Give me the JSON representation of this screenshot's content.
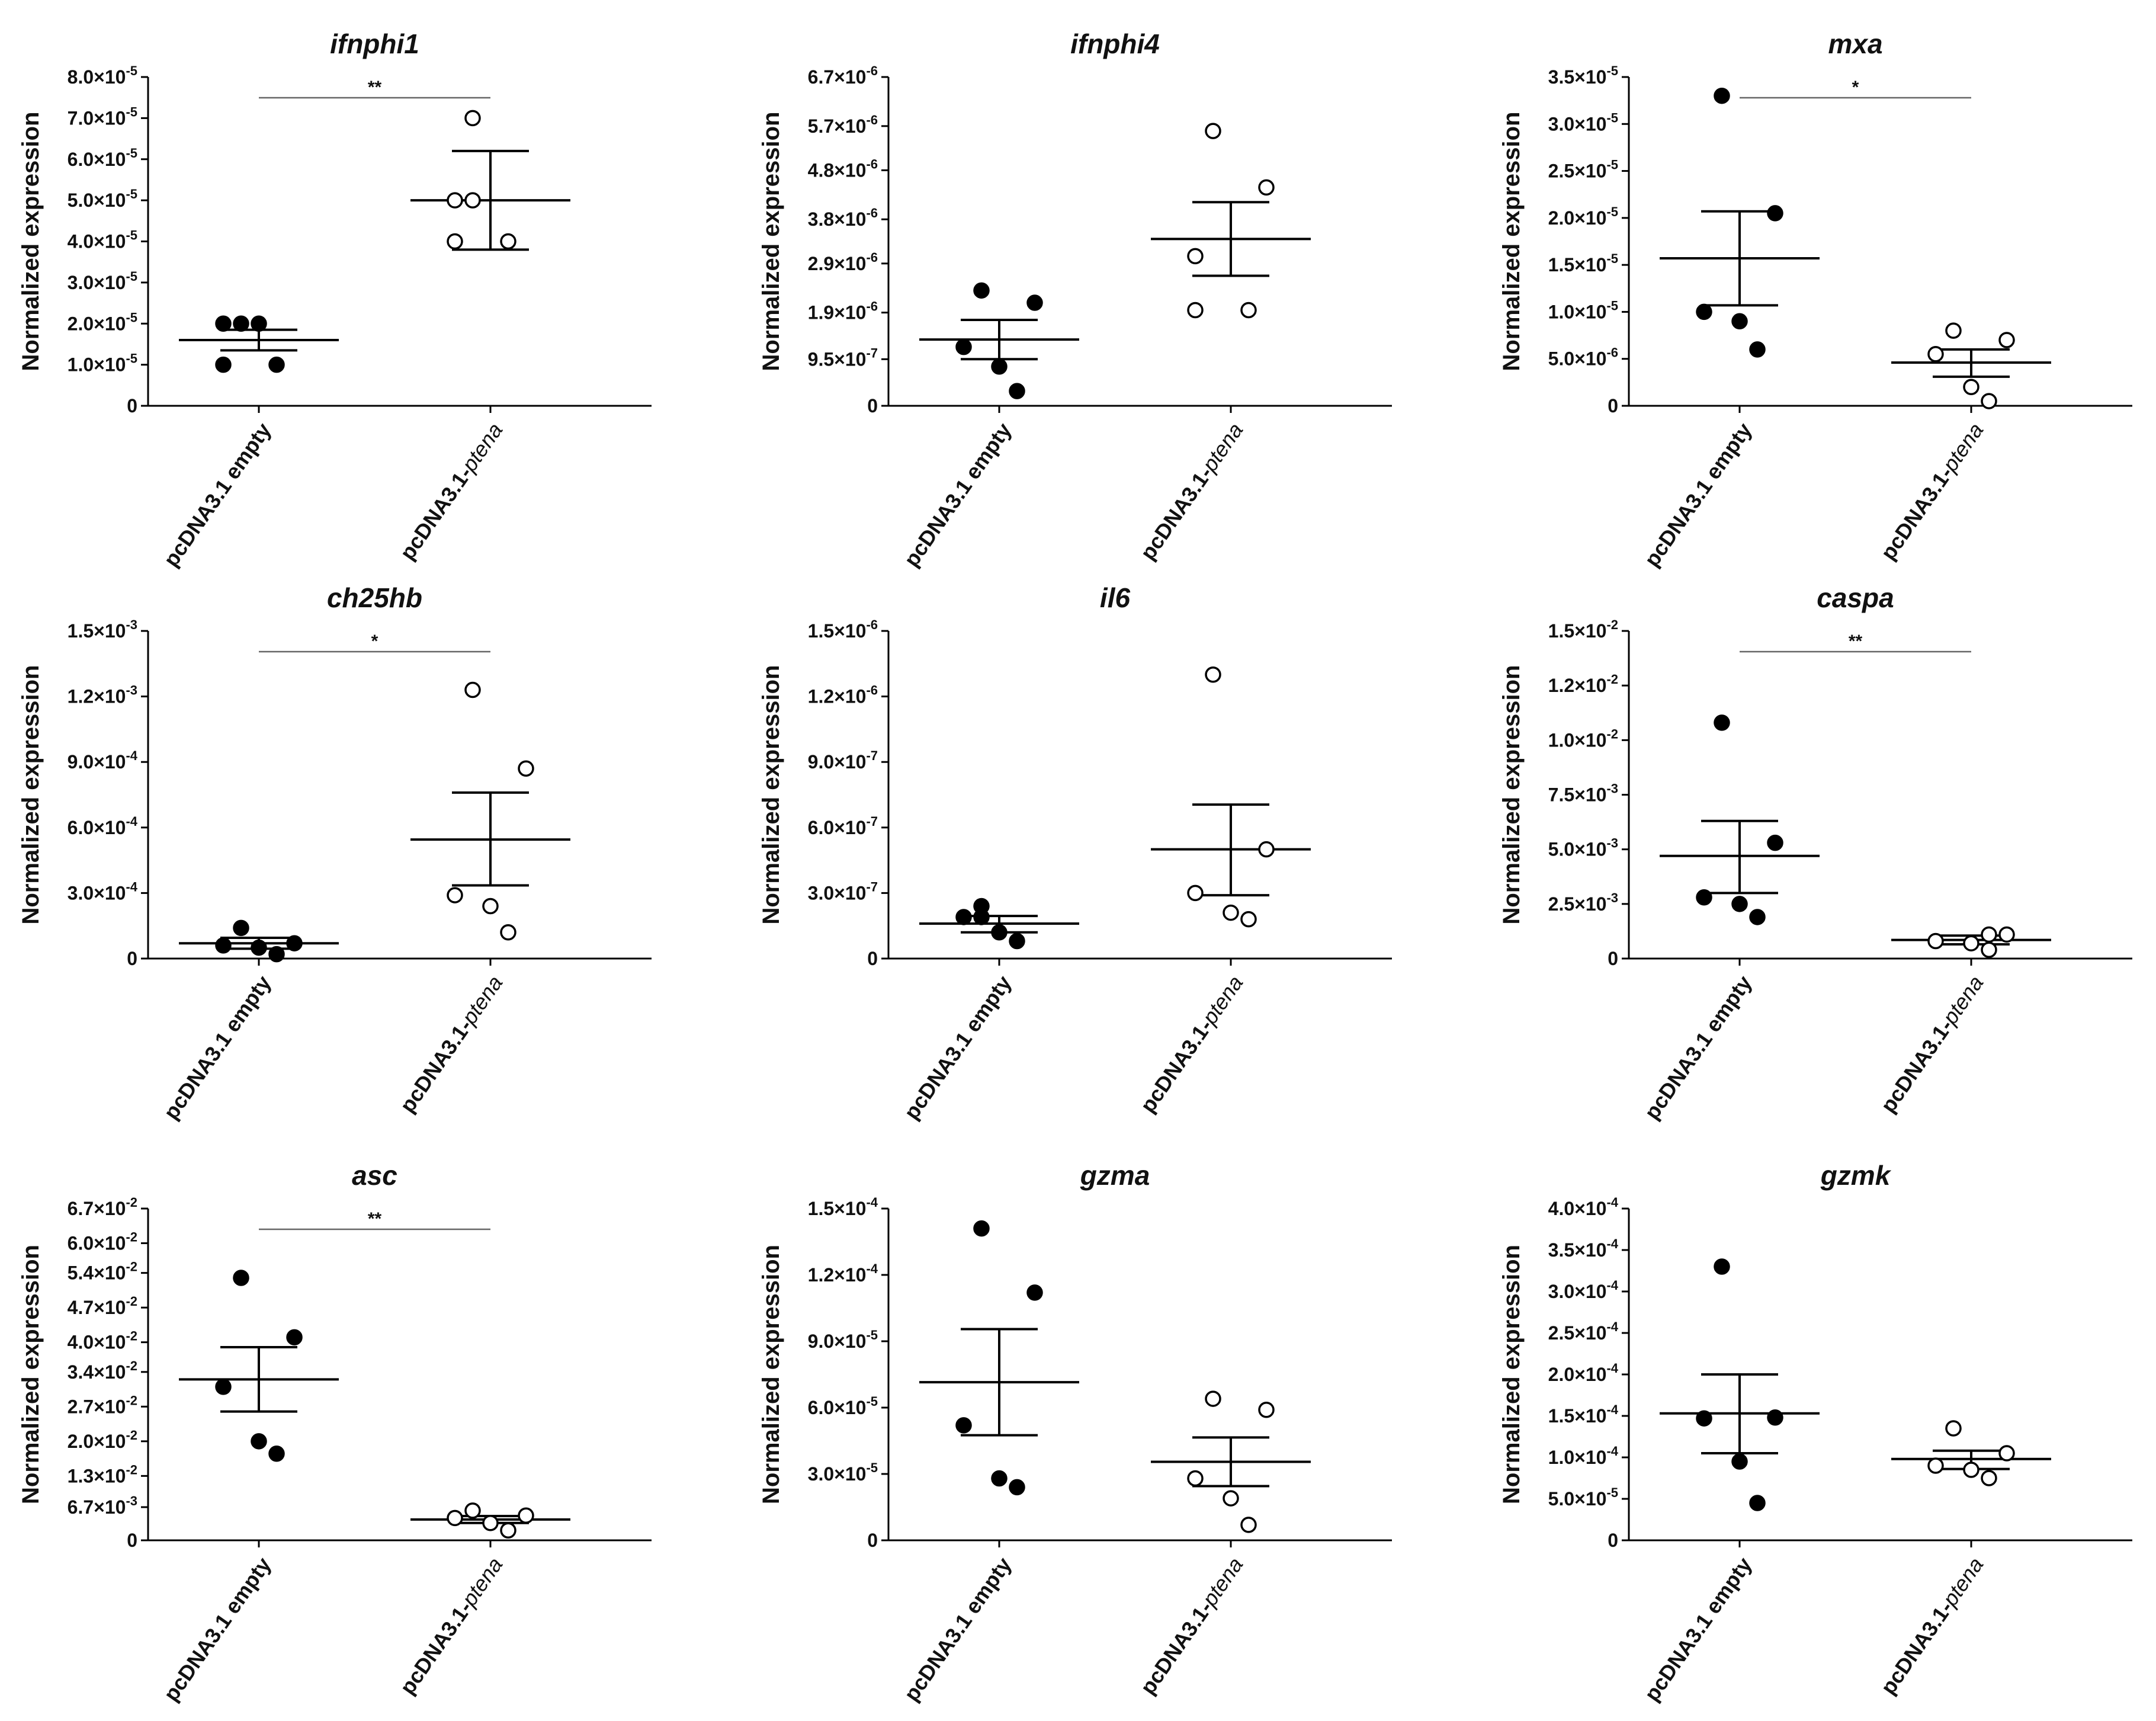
{
  "figure": {
    "background": "#ffffff",
    "filled_color": "#000000",
    "open_color": "#ffffff",
    "line_color": "#000000",
    "bar_color": "#666666"
  },
  "chart_data": [
    {
      "type": "scatter",
      "title": "ifnphi1",
      "ylabel": "Normalized expression",
      "categories": [
        "pcDNA3.1 empty",
        "pcDNA3.1-ptena"
      ],
      "ylim": [
        0,
        8e-05
      ],
      "yticks": [
        0,
        1e-05,
        2e-05,
        3e-05,
        4e-05,
        5e-05,
        6e-05,
        7e-05,
        8e-05
      ],
      "yticklabels": [
        "0",
        "1.0×10⁻⁵",
        "2.0×10⁻⁵",
        "3.0×10⁻⁵",
        "4.0×10⁻⁵",
        "5.0×10⁻⁵",
        "6.0×10⁻⁵",
        "7.0×10⁻⁵",
        "8.0×10⁻⁵"
      ],
      "series": [
        {
          "name": "pcDNA3.1 empty",
          "marker": "filled",
          "values": [
            1e-05,
            1e-05,
            2e-05,
            2e-05,
            2e-05
          ],
          "mean": 1.6e-05,
          "sem_low": 1.35e-05,
          "sem_high": 1.85e-05
        },
        {
          "name": "pcDNA3.1-ptena",
          "marker": "open",
          "values": [
            4e-05,
            4e-05,
            5e-05,
            5e-05,
            7e-05
          ],
          "mean": 5e-05,
          "sem_low": 3.8e-05,
          "sem_high": 6.2e-05
        }
      ],
      "significance": "**"
    },
    {
      "type": "scatter",
      "title": "ifnphi4",
      "ylabel": "Normalized expression",
      "categories": [
        "pcDNA3.1 empty",
        "pcDNA3.1-ptena"
      ],
      "ylim": [
        0,
        6.7e-06
      ],
      "yticks": [
        0,
        9.5e-07,
        1.9e-06,
        2.9e-06,
        3.8e-06,
        4.8e-06,
        5.7e-06,
        6.7e-06
      ],
      "yticklabels": [
        "0",
        "9.5×10⁻⁷",
        "1.9×10⁻⁶",
        "2.9×10⁻⁶",
        "3.8×10⁻⁶",
        "4.8×10⁻⁶",
        "5.7×10⁻⁶",
        "6.7×10⁻⁶"
      ],
      "series": [
        {
          "name": "pcDNA3.1 empty",
          "marker": "filled",
          "values": [
            3e-07,
            8e-07,
            1.2e-06,
            2.1e-06,
            2.35e-06
          ],
          "mean": 1.35e-06,
          "sem_low": 9.5e-07,
          "sem_high": 1.75e-06
        },
        {
          "name": "pcDNA3.1-ptena",
          "marker": "open",
          "values": [
            1.95e-06,
            1.95e-06,
            3.05e-06,
            4.45e-06,
            5.6e-06
          ],
          "mean": 3.4e-06,
          "sem_low": 2.65e-06,
          "sem_high": 4.15e-06
        }
      ],
      "significance": ""
    },
    {
      "type": "scatter",
      "title": "mxa",
      "ylabel": "Normalized expression",
      "categories": [
        "pcDNA3.1 empty",
        "pcDNA3.1-ptena"
      ],
      "ylim": [
        0,
        3.5e-05
      ],
      "yticks": [
        0,
        5e-06,
        1e-05,
        1.5e-05,
        2e-05,
        2.5e-05,
        3e-05,
        3.5e-05
      ],
      "yticklabels": [
        "0",
        "5.0×10⁻⁶",
        "1.0×10⁻⁵",
        "1.5×10⁻⁵",
        "2.0×10⁻⁵",
        "2.5×10⁻⁵",
        "3.0×10⁻⁵",
        "3.5×10⁻⁵"
      ],
      "series": [
        {
          "name": "pcDNA3.1 empty",
          "marker": "filled",
          "values": [
            6e-06,
            9e-06,
            1e-05,
            2.05e-05,
            3.3e-05
          ],
          "mean": 1.57e-05,
          "sem_low": 1.07e-05,
          "sem_high": 2.07e-05
        },
        {
          "name": "pcDNA3.1-ptena",
          "marker": "open",
          "values": [
            5e-07,
            2e-06,
            5.5e-06,
            7e-06,
            8e-06
          ],
          "mean": 4.6e-06,
          "sem_low": 3.1e-06,
          "sem_high": 6e-06
        }
      ],
      "significance": "*"
    },
    {
      "type": "scatter",
      "title": "ch25hb",
      "ylabel": "Normalized expression",
      "categories": [
        "pcDNA3.1 empty",
        "pcDNA3.1-ptena"
      ],
      "ylim": [
        0,
        0.0015
      ],
      "yticks": [
        0,
        0.0003,
        0.0006,
        0.0009,
        0.0012,
        0.0015
      ],
      "yticklabels": [
        "0",
        "3.0×10⁻⁴",
        "6.0×10⁻⁴",
        "9.0×10⁻⁴",
        "1.2×10⁻³",
        "1.5×10⁻³"
      ],
      "series": [
        {
          "name": "pcDNA3.1 empty",
          "marker": "filled",
          "values": [
            2e-05,
            5e-05,
            6e-05,
            7e-05,
            0.00014
          ],
          "mean": 7e-05,
          "sem_low": 4.5e-05,
          "sem_high": 9.5e-05
        },
        {
          "name": "pcDNA3.1-ptena",
          "marker": "open",
          "values": [
            0.00012,
            0.00024,
            0.00029,
            0.00087,
            0.00123
          ],
          "mean": 0.000545,
          "sem_low": 0.000335,
          "sem_high": 0.00076
        }
      ],
      "significance": "*"
    },
    {
      "type": "scatter",
      "title": "il6",
      "ylabel": "Normalized expression",
      "categories": [
        "pcDNA3.1 empty",
        "pcDNA3.1-ptena"
      ],
      "ylim": [
        0,
        1.5e-06
      ],
      "yticks": [
        0,
        3e-07,
        6e-07,
        9e-07,
        1.2e-06,
        1.5e-06
      ],
      "yticklabels": [
        "0",
        "3.0×10⁻⁷",
        "6.0×10⁻⁷",
        "9.0×10⁻⁷",
        "1.2×10⁻⁶",
        "1.5×10⁻⁶"
      ],
      "series": [
        {
          "name": "pcDNA3.1 empty",
          "marker": "filled",
          "values": [
            8e-08,
            1.2e-07,
            1.9e-07,
            1.9e-07,
            2.4e-07
          ],
          "mean": 1.6e-07,
          "sem_low": 1.2e-07,
          "sem_high": 1.95e-07
        },
        {
          "name": "pcDNA3.1-ptena",
          "marker": "open",
          "values": [
            1.8e-07,
            2.1e-07,
            3e-07,
            5e-07,
            1.3e-06
          ],
          "mean": 5e-07,
          "sem_low": 2.9e-07,
          "sem_high": 7.05e-07
        }
      ],
      "significance": ""
    },
    {
      "type": "scatter",
      "title": "caspa",
      "ylabel": "Normalized expression",
      "categories": [
        "pcDNA3.1 empty",
        "pcDNA3.1-ptena"
      ],
      "ylim": [
        0,
        0.015
      ],
      "yticks": [
        0,
        0.0025,
        0.005,
        0.0075,
        0.01,
        0.0125,
        0.015
      ],
      "yticklabels": [
        "0",
        "2.5×10⁻³",
        "5.0×10⁻³",
        "7.5×10⁻³",
        "1.0×10⁻²",
        "1.2×10⁻²",
        "1.5×10⁻²"
      ],
      "series": [
        {
          "name": "pcDNA3.1 empty",
          "marker": "filled",
          "values": [
            0.0019,
            0.0025,
            0.0028,
            0.0053,
            0.0108
          ],
          "mean": 0.0047,
          "sem_low": 0.003,
          "sem_high": 0.0063
        },
        {
          "name": "pcDNA3.1-ptena",
          "marker": "open",
          "values": [
            0.0004,
            0.0007,
            0.0008,
            0.0011,
            0.0011
          ],
          "mean": 0.00085,
          "sem_low": 0.00065,
          "sem_high": 0.00105
        }
      ],
      "significance": "**"
    },
    {
      "type": "scatter",
      "title": "asc",
      "ylabel": "Normalized expression",
      "categories": [
        "pcDNA3.1 empty",
        "pcDNA3.1-ptena"
      ],
      "ylim": [
        0,
        0.067
      ],
      "yticks": [
        0,
        0.0067,
        0.013,
        0.02,
        0.027,
        0.034,
        0.04,
        0.047,
        0.054,
        0.06,
        0.067
      ],
      "yticklabels": [
        "0",
        "6.7×10⁻³",
        "1.3×10⁻²",
        "2.0×10⁻²",
        "2.7×10⁻²",
        "3.4×10⁻²",
        "4.0×10⁻²",
        "4.7×10⁻²",
        "5.4×10⁻²",
        "6.0×10⁻²",
        "6.7×10⁻²"
      ],
      "series": [
        {
          "name": "pcDNA3.1 empty",
          "marker": "filled",
          "values": [
            0.0175,
            0.02,
            0.031,
            0.041,
            0.053
          ],
          "mean": 0.0325,
          "sem_low": 0.026,
          "sem_high": 0.039
        },
        {
          "name": "pcDNA3.1-ptena",
          "marker": "open",
          "values": [
            0.002,
            0.0035,
            0.0045,
            0.005,
            0.006
          ],
          "mean": 0.0042,
          "sem_low": 0.0035,
          "sem_high": 0.0049
        }
      ],
      "significance": "**"
    },
    {
      "type": "scatter",
      "title": "gzma",
      "ylabel": "Normalized expression",
      "categories": [
        "pcDNA3.1 empty",
        "pcDNA3.1-ptena"
      ],
      "ylim": [
        0,
        0.00015
      ],
      "yticks": [
        0,
        3e-05,
        6e-05,
        9e-05,
        0.00012,
        0.00015
      ],
      "yticklabels": [
        "0",
        "3.0×10⁻⁵",
        "6.0×10⁻⁵",
        "9.0×10⁻⁵",
        "1.2×10⁻⁴",
        "1.5×10⁻⁴"
      ],
      "series": [
        {
          "name": "pcDNA3.1 empty",
          "marker": "filled",
          "values": [
            2.4e-05,
            2.8e-05,
            5.2e-05,
            0.000112,
            0.000141
          ],
          "mean": 7.15e-05,
          "sem_low": 4.75e-05,
          "sem_high": 9.55e-05
        },
        {
          "name": "pcDNA3.1-ptena",
          "marker": "open",
          "values": [
            7e-06,
            1.9e-05,
            2.8e-05,
            5.9e-05,
            6.4e-05
          ],
          "mean": 3.55e-05,
          "sem_low": 2.45e-05,
          "sem_high": 4.65e-05
        }
      ],
      "significance": ""
    },
    {
      "type": "scatter",
      "title": "gzmk",
      "ylabel": "Normalized expression",
      "categories": [
        "pcDNA3.1 empty",
        "pcDNA3.1-ptena"
      ],
      "ylim": [
        0,
        0.0004
      ],
      "yticks": [
        0,
        5e-05,
        0.0001,
        0.00015,
        0.0002,
        0.00025,
        0.0003,
        0.00035,
        0.0004
      ],
      "yticklabels": [
        "0",
        "5.0×10⁻⁵",
        "1.0×10⁻⁴",
        "1.5×10⁻⁴",
        "2.0×10⁻⁴",
        "2.5×10⁻⁴",
        "3.0×10⁻⁴",
        "3.5×10⁻⁴",
        "4.0×10⁻⁴"
      ],
      "series": [
        {
          "name": "pcDNA3.1 empty",
          "marker": "filled",
          "values": [
            4.5e-05,
            9.5e-05,
            0.000147,
            0.000148,
            0.00033
          ],
          "mean": 0.000153,
          "sem_low": 0.000105,
          "sem_high": 0.0002
        },
        {
          "name": "pcDNA3.1-ptena",
          "marker": "open",
          "values": [
            7.5e-05,
            8.5e-05,
            9e-05,
            0.000105,
            0.000135
          ],
          "mean": 9.8e-05,
          "sem_low": 8.6e-05,
          "sem_high": 0.000108
        }
      ],
      "significance": ""
    }
  ]
}
